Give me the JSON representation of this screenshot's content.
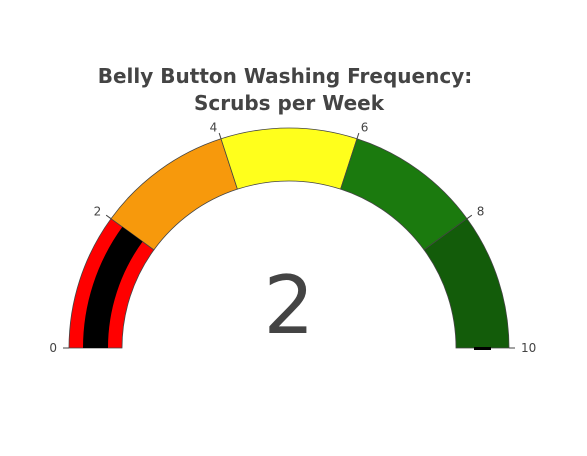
{
  "chart_data": {
    "type": "gauge",
    "title": [
      "Belly Button Washing Frequency:",
      "Scrubs per Week"
    ],
    "value": 2,
    "value_label": "2",
    "range": [
      0,
      10
    ],
    "ticks": [
      {
        "value": 0,
        "label": "0"
      },
      {
        "value": 2,
        "label": "2"
      },
      {
        "value": 4,
        "label": "4"
      },
      {
        "value": 6,
        "label": "6"
      },
      {
        "value": 8,
        "label": "8"
      },
      {
        "value": 10,
        "label": "10"
      }
    ],
    "steps": [
      {
        "from": 0,
        "to": 2,
        "color": "#ff0000"
      },
      {
        "from": 2,
        "to": 4,
        "color": "#f7990c"
      },
      {
        "from": 4,
        "to": 6,
        "color": "#ffff1c"
      },
      {
        "from": 6,
        "to": 8,
        "color": "#1b7a0e"
      },
      {
        "from": 8,
        "to": 10,
        "color": "#135c0a"
      }
    ],
    "bar_color": "#000000",
    "text_color": "#444444"
  }
}
